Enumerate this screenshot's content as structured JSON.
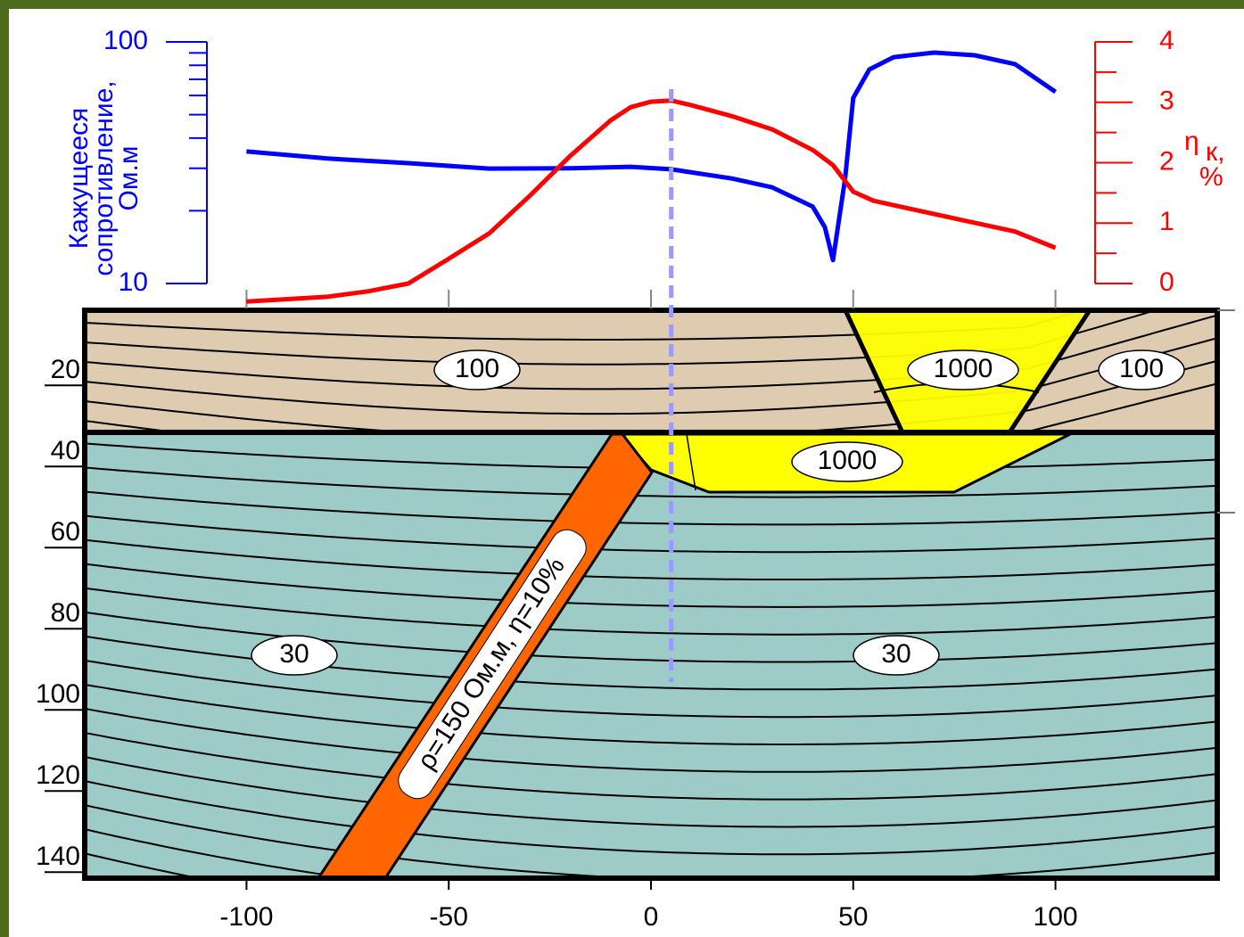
{
  "chart_data": [
    {
      "type": "line",
      "ylabel": [
        "Кажущееся",
        "сопротивление,",
        "Ом.м"
      ],
      "y2label": {
        "symbol": "η",
        "subscript": "к,",
        "unit": "%"
      },
      "yscale": "log",
      "ylim": [
        10,
        100
      ],
      "yticks": [
        10,
        100
      ],
      "yminor": [
        20,
        30,
        40,
        50,
        60,
        70,
        80,
        90
      ],
      "y2lim": [
        0,
        4
      ],
      "y2ticks": [
        0,
        1,
        2,
        3,
        4
      ],
      "y2minor": [
        0.5,
        1.5,
        2.5,
        3.5
      ],
      "xlim": [
        -140,
        140
      ],
      "xticks": [
        -100,
        -50,
        0,
        50,
        100
      ],
      "marker_x": 5,
      "series": [
        {
          "color": "#0000ff",
          "axis": "y",
          "x": [
            -100,
            -80,
            -60,
            -40,
            -20,
            -5,
            5,
            20,
            30,
            40,
            43,
            45,
            48,
            50,
            54,
            60,
            70,
            80,
            90,
            100
          ],
          "values": [
            35.2,
            32.9,
            31.5,
            29.9,
            30,
            30.4,
            29.7,
            27.2,
            25,
            20.8,
            17.1,
            12.5,
            27.2,
            58.6,
            76.9,
            86.5,
            90.3,
            88,
            80.9,
            62.1
          ]
        },
        {
          "color": "#ff0000",
          "axis": "y2",
          "x": [
            -100,
            -80,
            -70,
            -60,
            -50,
            -40,
            -30,
            -20,
            -10,
            -5,
            0,
            5,
            10,
            20,
            30,
            40,
            45,
            50,
            55,
            70,
            90,
            100
          ],
          "values": [
            -0.3,
            -0.22,
            -0.13,
            0,
            0.41,
            0.83,
            1.45,
            2.11,
            2.7,
            2.92,
            3.01,
            3.03,
            2.95,
            2.77,
            2.55,
            2.21,
            1.96,
            1.52,
            1.37,
            1.15,
            0.86,
            0.59
          ]
        }
      ]
    },
    {
      "type": "section",
      "xlim": [
        -140,
        140
      ],
      "xticks": [
        -100,
        -50,
        0,
        50,
        100
      ],
      "ylim": [
        5,
        145
      ],
      "yticks": [
        20,
        40,
        60,
        80,
        100,
        120,
        140
      ],
      "rho_labels": [
        100,
        1000,
        100,
        1000,
        30,
        30
      ],
      "dike_label": "ρ=150 Ом.м, η=10%"
    }
  ]
}
